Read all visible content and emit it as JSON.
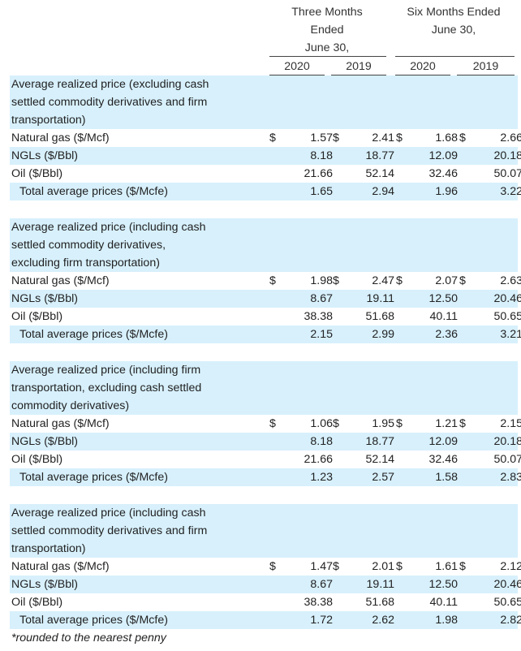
{
  "header": {
    "three_months": [
      "Three Months",
      "Ended",
      "June 30,"
    ],
    "six_months": [
      "Six Months Ended",
      "June 30,"
    ],
    "years": [
      "2020",
      "2019",
      "2020",
      "2019"
    ]
  },
  "sections": [
    {
      "title_lines": [
        "Average realized price (excluding cash",
        "settled commodity derivatives and firm",
        "transportation)"
      ],
      "rows": [
        {
          "label": "Natural gas ($/Mcf)",
          "currency": "$",
          "values": [
            "1.57",
            "2.41",
            "1.68",
            "2.66"
          ]
        },
        {
          "label": "NGLs ($/Bbl)",
          "currency": "",
          "values": [
            "8.18",
            "18.77",
            "12.09",
            "20.18"
          ]
        },
        {
          "label": "Oil ($/Bbl)",
          "currency": "",
          "values": [
            "21.66",
            "52.14",
            "32.46",
            "50.07"
          ]
        },
        {
          "label": "Total average prices ($/Mcfe)",
          "currency": "",
          "values": [
            "1.65",
            "2.94",
            "1.96",
            "3.22"
          ]
        }
      ]
    },
    {
      "title_lines": [
        "Average realized price (including cash",
        "settled commodity derivatives,",
        "excluding firm transportation)"
      ],
      "rows": [
        {
          "label": "Natural gas ($/Mcf)",
          "currency": "$",
          "values": [
            "1.98",
            "2.47",
            "2.07",
            "2.63"
          ]
        },
        {
          "label": "NGLs ($/Bbl)",
          "currency": "",
          "values": [
            "8.67",
            "19.11",
            "12.50",
            "20.46"
          ]
        },
        {
          "label": "Oil ($/Bbl)",
          "currency": "",
          "values": [
            "38.38",
            "51.68",
            "40.11",
            "50.65"
          ]
        },
        {
          "label": "Total average prices ($/Mcfe)",
          "currency": "",
          "values": [
            "2.15",
            "2.99",
            "2.36",
            "3.21"
          ]
        }
      ]
    },
    {
      "title_lines": [
        "Average realized price (including firm",
        "transportation, excluding cash settled",
        "commodity derivatives)"
      ],
      "rows": [
        {
          "label": "Natural gas ($/Mcf)",
          "currency": "$",
          "values": [
            "1.06",
            "1.95",
            "1.21",
            "2.15"
          ]
        },
        {
          "label": "NGLs ($/Bbl)",
          "currency": "",
          "values": [
            "8.18",
            "18.77",
            "12.09",
            "20.18"
          ]
        },
        {
          "label": "Oil ($/Bbl)",
          "currency": "",
          "values": [
            "21.66",
            "52.14",
            "32.46",
            "50.07"
          ]
        },
        {
          "label": "Total average prices ($/Mcfe)",
          "currency": "",
          "values": [
            "1.23",
            "2.57",
            "1.58",
            "2.83"
          ]
        }
      ]
    },
    {
      "title_lines": [
        "Average realized price (including cash",
        "settled commodity derivatives and firm",
        "transportation)"
      ],
      "rows": [
        {
          "label": "Natural gas ($/Mcf)",
          "currency": "$",
          "values": [
            "1.47",
            "2.01",
            "1.61",
            "2.12"
          ]
        },
        {
          "label": "NGLs ($/Bbl)",
          "currency": "",
          "values": [
            "8.67",
            "19.11",
            "12.50",
            "20.46"
          ]
        },
        {
          "label": "Oil ($/Bbl)",
          "currency": "",
          "values": [
            "38.38",
            "51.68",
            "40.11",
            "50.65"
          ]
        },
        {
          "label": "Total average prices ($/Mcfe)",
          "currency": "",
          "values": [
            "1.72",
            "2.62",
            "1.98",
            "2.82"
          ]
        }
      ]
    }
  ],
  "footnote": "*rounded to the nearest penny"
}
